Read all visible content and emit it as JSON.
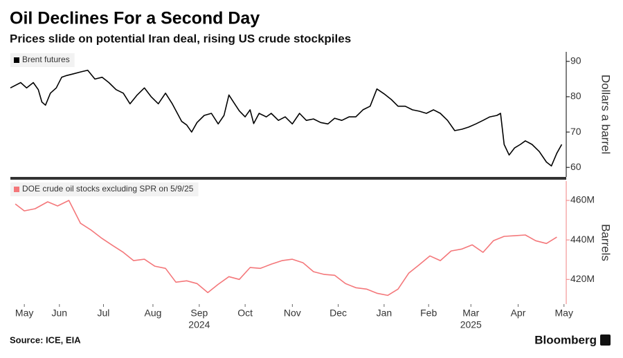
{
  "title": "Oil Declines For a Second Day",
  "subtitle": "Prices slide on potential Iran deal, rising US crude stockpiles",
  "source": "Source: ICE, EIA",
  "brand": "Bloomberg",
  "chart_data": [
    {
      "type": "line",
      "ylabel": "Dollars a barrel",
      "xlim": [
        -0.31,
        12.05
      ],
      "ylim": [
        57.3,
        92.7
      ],
      "yticks": [
        60,
        70,
        80,
        90
      ],
      "series": [
        {
          "name": "Brent futures",
          "color": "#000000",
          "x": [
            -0.31,
            -0.08,
            0.05,
            0.2,
            0.31,
            0.39,
            0.47,
            0.58,
            0.71,
            0.83,
            0.94,
            1.1,
            1.25,
            1.41,
            1.57,
            1.73,
            1.88,
            2.04,
            2.2,
            2.35,
            2.51,
            2.67,
            2.82,
            2.98,
            3.14,
            3.29,
            3.5,
            3.61,
            3.72,
            3.84,
            4.0,
            4.16,
            4.31,
            4.44,
            4.55,
            4.66,
            4.78,
            4.91,
            5.02,
            5.1,
            5.22,
            5.38,
            5.49,
            5.65,
            5.8,
            5.96,
            6.12,
            6.27,
            6.43,
            6.59,
            6.75,
            6.9,
            7.06,
            7.22,
            7.37,
            7.53,
            7.69,
            7.84,
            8.0,
            8.16,
            8.31,
            8.47,
            8.63,
            8.78,
            8.94,
            9.1,
            9.25,
            9.41,
            9.57,
            9.73,
            9.88,
            10.04,
            10.2,
            10.35,
            10.51,
            10.59,
            10.67,
            10.78,
            10.9,
            11.03,
            11.14,
            11.29,
            11.45,
            11.61,
            11.72,
            11.84,
            11.95
          ],
          "values": [
            82.5,
            84,
            82.5,
            84,
            82,
            78.5,
            77.6,
            81,
            82.5,
            85.5,
            86,
            86.5,
            87,
            87.5,
            85,
            85.5,
            84,
            82,
            81,
            78,
            80.5,
            82.5,
            80,
            78,
            81,
            78,
            73,
            72,
            70,
            72.7,
            74.7,
            75.3,
            72.3,
            74.7,
            80.5,
            78.3,
            76,
            74.3,
            76.3,
            72.4,
            75.3,
            74.3,
            75.3,
            73.3,
            74.3,
            72.3,
            75.3,
            73.3,
            73.7,
            72.7,
            72.3,
            73.9,
            73.3,
            74.3,
            74.3,
            76.3,
            77.3,
            82.2,
            80.8,
            79.2,
            77.3,
            77.3,
            76.3,
            75.9,
            75.3,
            76.3,
            75.3,
            73.3,
            70.4,
            70.8,
            71.4,
            72.3,
            73.3,
            74.3,
            74.7,
            75.3,
            66.5,
            63.5,
            65.5,
            66.5,
            67.5,
            66.5,
            64.5,
            61.5,
            60.4,
            64,
            66.5
          ]
        }
      ]
    },
    {
      "type": "line",
      "ylabel": "Barrels",
      "xlim": [
        -0.31,
        12.05
      ],
      "ylim": [
        407.5,
        469.8
      ],
      "yticks": [
        {
          "value": 420,
          "label": "420M"
        },
        {
          "value": 440,
          "label": "440M"
        },
        {
          "value": 460,
          "label": "460M"
        }
      ],
      "xticks": [
        {
          "value": 0,
          "label": "May"
        },
        {
          "value": 0.78,
          "label": "Jun"
        },
        {
          "value": 1.76,
          "label": "Jul"
        },
        {
          "value": 2.86,
          "label": "Aug"
        },
        {
          "value": 3.89,
          "label": "Sep"
        },
        {
          "value": 4.91,
          "label": "Oct"
        },
        {
          "value": 5.96,
          "label": "Nov"
        },
        {
          "value": 6.98,
          "label": "Dec"
        },
        {
          "value": 8.0,
          "label": "Jan"
        },
        {
          "value": 8.99,
          "label": "Feb"
        },
        {
          "value": 9.93,
          "label": "Mar"
        },
        {
          "value": 10.98,
          "label": "Apr"
        },
        {
          "value": 12.0,
          "label": "May"
        }
      ],
      "year_labels": [
        {
          "value": 3.89,
          "label": "2024"
        },
        {
          "value": 9.93,
          "label": "2025"
        }
      ],
      "series": [
        {
          "name": "DOE crude oil stocks excluding SPR on 5/9/25",
          "color": "#f4777a",
          "x": [
            -0.2,
            0,
            0.24,
            0.52,
            0.74,
            0.99,
            1.25,
            1.49,
            1.73,
            1.96,
            2.2,
            2.43,
            2.67,
            2.9,
            3.14,
            3.37,
            3.61,
            3.84,
            4.08,
            4.31,
            4.55,
            4.78,
            5.02,
            5.25,
            5.49,
            5.73,
            5.96,
            6.2,
            6.43,
            6.67,
            6.9,
            7.14,
            7.37,
            7.61,
            7.84,
            8.08,
            8.31,
            8.55,
            8.78,
            9.02,
            9.25,
            9.49,
            9.73,
            9.96,
            10.2,
            10.43,
            10.67,
            10.9,
            11.14,
            11.37,
            11.61,
            11.84
          ],
          "values": [
            458.2,
            454.7,
            455.8,
            459.3,
            457.2,
            460,
            448.4,
            444.9,
            440.7,
            437.2,
            433.7,
            429.5,
            430.2,
            426.7,
            425.6,
            418.6,
            419.3,
            417.9,
            413.3,
            417.5,
            421.4,
            420,
            426,
            425.6,
            427.7,
            429.5,
            430.2,
            428.4,
            423.9,
            422.5,
            422.1,
            417.9,
            415.8,
            415.1,
            413,
            411.9,
            415.1,
            423.2,
            427.4,
            431.9,
            429.5,
            434.4,
            435.4,
            437.5,
            433.7,
            439.6,
            441.8,
            442.1,
            442.5,
            439.6,
            438.2,
            441.4
          ]
        }
      ]
    }
  ]
}
